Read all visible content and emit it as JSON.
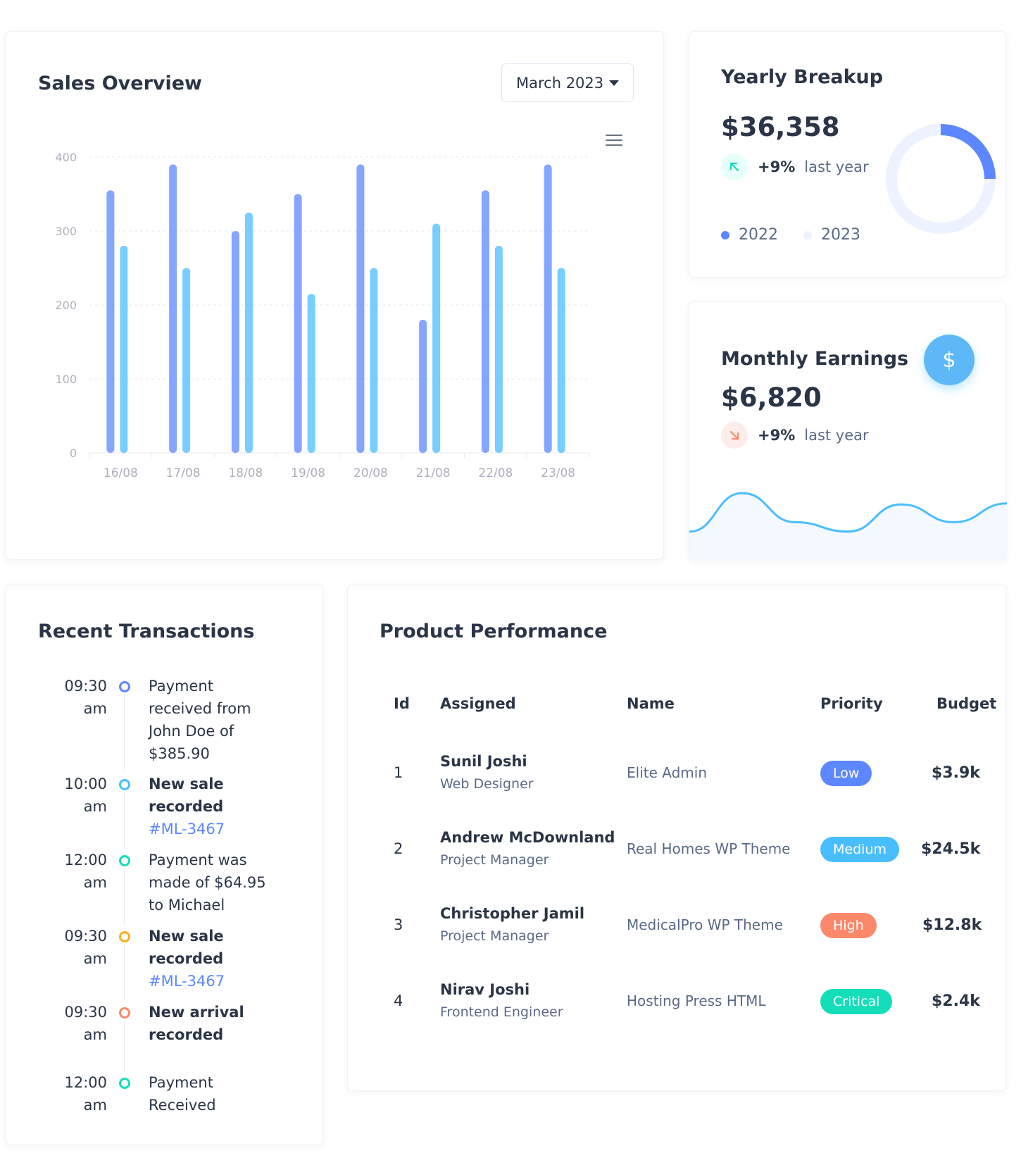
{
  "sales_overview": {
    "title": "Sales Overview",
    "month_select": "March 2023",
    "menu_icon": "hamburger-icon",
    "chart_data": {
      "type": "bar",
      "categories": [
        "16/08",
        "17/08",
        "18/08",
        "19/08",
        "20/08",
        "21/08",
        "22/08",
        "23/08"
      ],
      "series": [
        {
          "values": [
            355,
            390,
            300,
            350,
            390,
            180,
            355,
            390
          ],
          "color": "#5d87ff"
        },
        {
          "values": [
            280,
            250,
            325,
            215,
            250,
            310,
            280,
            250
          ],
          "color": "#49beff"
        }
      ],
      "ylim": [
        0,
        400
      ],
      "yticks": [
        "400",
        "300",
        "200",
        "100",
        "0"
      ],
      "grid": true
    }
  },
  "yearly_breakup": {
    "title": "Yearly Breakup",
    "amount": "$36,358",
    "trend_icon": "arrow-up-left-icon",
    "trend_pct": "+9%",
    "trend_note": "last year",
    "legend": [
      {
        "label": "2022",
        "color": "#5d87ff"
      },
      {
        "label": "2023",
        "color": "#ecf2ff"
      }
    ],
    "donut": [
      {
        "label": "2022",
        "value": 25,
        "color": "#5d87ff"
      },
      {
        "label": "2023",
        "value": 75,
        "color": "#ecf2ff"
      }
    ]
  },
  "monthly_earnings": {
    "title": "Monthly Earnings",
    "amount": "$6,820",
    "dollar_icon": "dollar-icon",
    "dollar_symbol": "$",
    "trend_icon": "arrow-down-right-icon",
    "trend_pct": "+9%",
    "trend_note": "last year",
    "sparkline": [
      25,
      66,
      35,
      25,
      54,
      35,
      55
    ],
    "colors": {
      "line": "#49beff",
      "fill": "#f4f9ff"
    }
  },
  "recent_transactions": {
    "title": "Recent Transactions",
    "items": [
      {
        "time1": "09:30",
        "time2": "am",
        "color": "#5d87ff",
        "line1": "Payment",
        "line2": "received from",
        "line3": "John Doe of",
        "line4": "$385.90",
        "bold": false
      },
      {
        "time1": "10:00",
        "time2": "am",
        "color": "#49beff",
        "line1": "New sale",
        "line2": "recorded",
        "link": "#ML-3467",
        "bold": true
      },
      {
        "time1": "12:00",
        "time2": "am",
        "color": "#13deb9",
        "line1": "Payment was",
        "line2": "made of $64.95",
        "line3": "to Michael",
        "bold": false
      },
      {
        "time1": "09:30",
        "time2": "am",
        "color": "#ffae1f",
        "line1": "New sale",
        "line2": "recorded",
        "link": "#ML-3467",
        "bold": true
      },
      {
        "time1": "09:30",
        "time2": "am",
        "color": "#fa896b",
        "line1": "New arrival",
        "line2": "recorded",
        "bold": true
      },
      {
        "time1": "12:00",
        "time2": "am",
        "color": "#13deb9",
        "line1": "Payment",
        "line2": "Received",
        "bold": false
      }
    ]
  },
  "product_performance": {
    "title": "Product Performance",
    "columns": [
      "Id",
      "Assigned",
      "Name",
      "Priority",
      "Budget"
    ],
    "rows": [
      {
        "id": "1",
        "assigned_name": "Sunil Joshi",
        "assigned_role": "Web Designer",
        "name": "Elite Admin",
        "priority": "Low",
        "priority_color": "#5d87ff",
        "budget": "$3.9k"
      },
      {
        "id": "2",
        "assigned_name": "Andrew McDownland",
        "assigned_role": "Project Manager",
        "name": "Real Homes WP Theme",
        "priority": "Medium",
        "priority_color": "#49beff",
        "budget": "$24.5k"
      },
      {
        "id": "3",
        "assigned_name": "Christopher Jamil",
        "assigned_role": "Project Manager",
        "name": "MedicalPro WP Theme",
        "priority": "High",
        "priority_color": "#fa896b",
        "budget": "$12.8k"
      },
      {
        "id": "4",
        "assigned_name": "Nirav Joshi",
        "assigned_role": "Frontend Engineer",
        "name": "Hosting Press HTML",
        "priority": "Critical",
        "priority_color": "#13deb9",
        "budget": "$2.4k"
      }
    ]
  }
}
